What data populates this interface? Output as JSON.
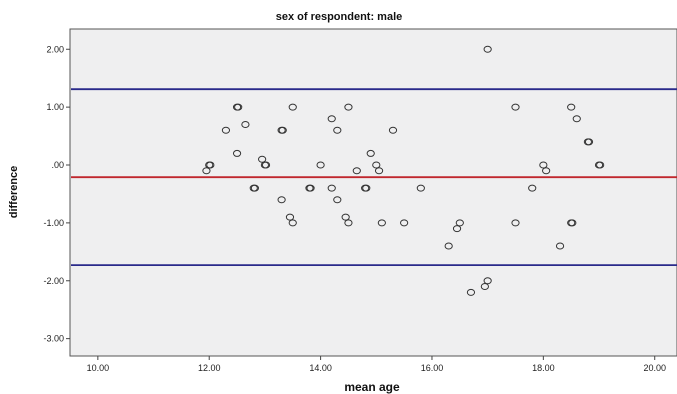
{
  "chart_data": {
    "type": "scatter",
    "title": "sex of respondent: male",
    "xlabel": "mean age",
    "ylabel": "difference",
    "xlim": [
      9.5,
      20.4
    ],
    "ylim": [
      -3.3,
      2.35
    ],
    "xticks": [
      10,
      12,
      14,
      16,
      18,
      20
    ],
    "xtick_labels": [
      "10.00",
      "12.00",
      "14.00",
      "16.00",
      "18.00",
      "20.00"
    ],
    "yticks": [
      2,
      1,
      0,
      -1,
      -2,
      -3
    ],
    "ytick_labels": [
      "2.00",
      "1.00",
      ".00",
      "-1.00",
      "-2.00",
      "-3.00"
    ],
    "grid": false,
    "plot_background": "#efeff0",
    "reference_lines": [
      {
        "y": 1.31,
        "color": "#2a2a8a"
      },
      {
        "y": -0.21,
        "color": "#c0272d"
      },
      {
        "y": -1.73,
        "color": "#2a2a8a"
      }
    ],
    "points": [
      {
        "x": 11.95,
        "y": -0.1
      },
      {
        "x": 12.0,
        "y": 0.0
      },
      {
        "x": 12.02,
        "y": 0.0
      },
      {
        "x": 12.3,
        "y": 0.6
      },
      {
        "x": 12.5,
        "y": 1.0
      },
      {
        "x": 12.52,
        "y": 1.0
      },
      {
        "x": 12.5,
        "y": 0.2
      },
      {
        "x": 12.65,
        "y": 0.7
      },
      {
        "x": 12.8,
        "y": -0.4
      },
      {
        "x": 12.82,
        "y": -0.4
      },
      {
        "x": 12.95,
        "y": 0.1
      },
      {
        "x": 13.0,
        "y": 0.0
      },
      {
        "x": 13.02,
        "y": 0.0
      },
      {
        "x": 13.3,
        "y": 0.6
      },
      {
        "x": 13.32,
        "y": 0.6
      },
      {
        "x": 13.3,
        "y": -0.6
      },
      {
        "x": 13.45,
        "y": -0.9
      },
      {
        "x": 13.5,
        "y": -1.0
      },
      {
        "x": 13.5,
        "y": 1.0
      },
      {
        "x": 13.8,
        "y": -0.4
      },
      {
        "x": 13.82,
        "y": -0.4
      },
      {
        "x": 14.0,
        "y": 0.0
      },
      {
        "x": 14.2,
        "y": -0.4
      },
      {
        "x": 14.2,
        "y": 0.8
      },
      {
        "x": 14.3,
        "y": 0.6
      },
      {
        "x": 14.3,
        "y": -0.6
      },
      {
        "x": 14.45,
        "y": -0.9
      },
      {
        "x": 14.5,
        "y": -1.0
      },
      {
        "x": 14.5,
        "y": 1.0
      },
      {
        "x": 14.65,
        "y": -0.1
      },
      {
        "x": 14.8,
        "y": -0.4
      },
      {
        "x": 14.82,
        "y": -0.4
      },
      {
        "x": 14.9,
        "y": 0.2
      },
      {
        "x": 15.0,
        "y": 0.0
      },
      {
        "x": 15.05,
        "y": -0.1
      },
      {
        "x": 15.1,
        "y": -1.0
      },
      {
        "x": 15.3,
        "y": 0.6
      },
      {
        "x": 15.5,
        "y": -1.0
      },
      {
        "x": 15.8,
        "y": -0.4
      },
      {
        "x": 16.3,
        "y": -1.4
      },
      {
        "x": 16.45,
        "y": -1.1
      },
      {
        "x": 16.5,
        "y": -1.0
      },
      {
        "x": 16.7,
        "y": -2.2
      },
      {
        "x": 16.95,
        "y": -2.1
      },
      {
        "x": 17.0,
        "y": -2.0
      },
      {
        "x": 17.0,
        "y": 2.0
      },
      {
        "x": 17.5,
        "y": 1.0
      },
      {
        "x": 17.5,
        "y": -1.0
      },
      {
        "x": 17.8,
        "y": -0.4
      },
      {
        "x": 18.0,
        "y": 0.0
      },
      {
        "x": 18.05,
        "y": -0.1
      },
      {
        "x": 18.3,
        "y": -1.4
      },
      {
        "x": 18.5,
        "y": 1.0
      },
      {
        "x": 18.5,
        "y": -1.0
      },
      {
        "x": 18.52,
        "y": -1.0
      },
      {
        "x": 18.6,
        "y": 0.8
      },
      {
        "x": 18.8,
        "y": 0.4
      },
      {
        "x": 18.82,
        "y": 0.4
      },
      {
        "x": 19.0,
        "y": 0.0
      },
      {
        "x": 19.02,
        "y": 0.0
      }
    ]
  }
}
